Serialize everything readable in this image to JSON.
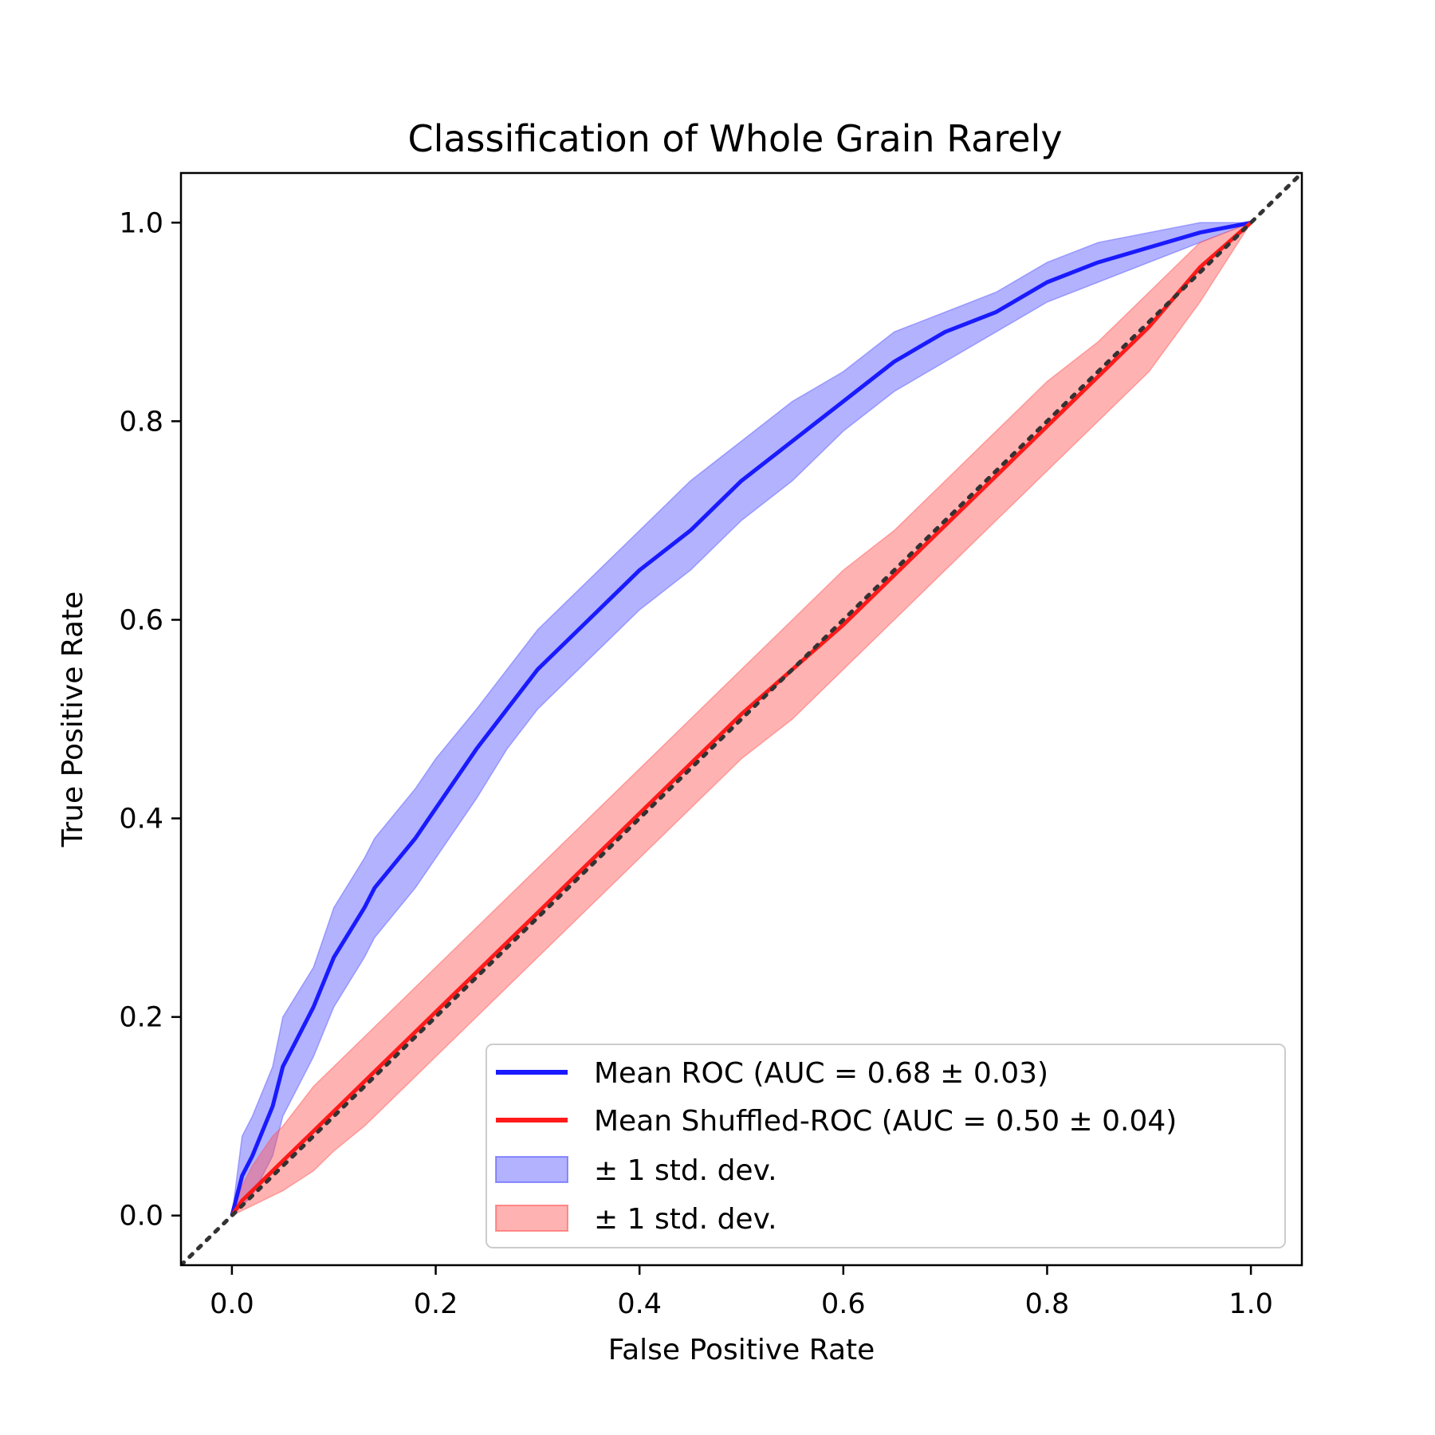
{
  "chart_data": {
    "type": "line",
    "title": "Classification of Whole Grain Rarely",
    "xlabel": "False Positive Rate",
    "ylabel": "True Positive Rate",
    "xlim": [
      -0.05,
      1.05
    ],
    "ylim": [
      -0.05,
      1.05
    ],
    "xticks": [
      "0.0",
      "0.2",
      "0.4",
      "0.6",
      "0.8",
      "1.0"
    ],
    "yticks": [
      "0.0",
      "0.2",
      "0.4",
      "0.6",
      "0.8",
      "1.0"
    ],
    "grid": false,
    "legend_position": "lower-right",
    "x": [
      0.0,
      0.01,
      0.02,
      0.04,
      0.05,
      0.08,
      0.1,
      0.13,
      0.14,
      0.18,
      0.2,
      0.24,
      0.27,
      0.3,
      0.35,
      0.4,
      0.45,
      0.5,
      0.55,
      0.6,
      0.65,
      0.7,
      0.75,
      0.8,
      0.85,
      0.9,
      0.95,
      1.0
    ],
    "series": [
      {
        "name": "Mean ROC (AUC = 0.68 ± 0.03)",
        "color": "#1a1aff",
        "y": [
          0.0,
          0.04,
          0.06,
          0.11,
          0.15,
          0.21,
          0.26,
          0.31,
          0.33,
          0.38,
          0.41,
          0.47,
          0.51,
          0.55,
          0.6,
          0.65,
          0.69,
          0.74,
          0.78,
          0.82,
          0.86,
          0.89,
          0.91,
          0.94,
          0.96,
          0.975,
          0.99,
          1.0
        ],
        "band": {
          "name": "± 1 std. dev.",
          "color": "#5555ff",
          "upper": [
            0.0,
            0.08,
            0.1,
            0.15,
            0.2,
            0.25,
            0.31,
            0.36,
            0.38,
            0.43,
            0.46,
            0.51,
            0.55,
            0.59,
            0.64,
            0.69,
            0.74,
            0.78,
            0.82,
            0.85,
            0.89,
            0.91,
            0.93,
            0.96,
            0.98,
            0.99,
            1.0,
            1.0
          ],
          "lower": [
            0.0,
            0.01,
            0.02,
            0.06,
            0.1,
            0.16,
            0.21,
            0.26,
            0.28,
            0.33,
            0.36,
            0.42,
            0.47,
            0.51,
            0.56,
            0.61,
            0.65,
            0.7,
            0.74,
            0.79,
            0.83,
            0.86,
            0.89,
            0.92,
            0.94,
            0.96,
            0.98,
            1.0
          ]
        }
      },
      {
        "name": "Mean Shuffled-ROC (AUC = 0.50 ± 0.04)",
        "color": "#ff1a1a",
        "y": [
          0.0,
          0.015,
          0.025,
          0.045,
          0.055,
          0.085,
          0.105,
          0.135,
          0.145,
          0.185,
          0.205,
          0.245,
          0.275,
          0.305,
          0.355,
          0.405,
          0.455,
          0.505,
          0.55,
          0.595,
          0.645,
          0.695,
          0.745,
          0.795,
          0.845,
          0.895,
          0.955,
          1.0
        ],
        "band": {
          "name": "± 1 std. dev.",
          "color": "#ff5555",
          "upper": [
            0.0,
            0.03,
            0.05,
            0.08,
            0.09,
            0.13,
            0.15,
            0.18,
            0.19,
            0.23,
            0.25,
            0.29,
            0.32,
            0.35,
            0.4,
            0.45,
            0.5,
            0.55,
            0.6,
            0.65,
            0.69,
            0.74,
            0.79,
            0.84,
            0.88,
            0.93,
            0.98,
            1.0
          ],
          "lower": [
            0.0,
            0.005,
            0.01,
            0.02,
            0.025,
            0.045,
            0.065,
            0.09,
            0.1,
            0.14,
            0.16,
            0.2,
            0.23,
            0.26,
            0.31,
            0.36,
            0.41,
            0.46,
            0.5,
            0.55,
            0.6,
            0.65,
            0.7,
            0.75,
            0.8,
            0.85,
            0.92,
            1.0
          ]
        }
      }
    ],
    "reference_line": {
      "x": [
        -0.05,
        1.05
      ],
      "y": [
        -0.05,
        1.05
      ],
      "color": "#333333",
      "style": "dotted"
    },
    "legend": [
      {
        "label": "Mean ROC (AUC = 0.68 ± 0.03)",
        "kind": "line",
        "color": "#1a1aff"
      },
      {
        "label": "Mean Shuffled-ROC (AUC = 0.50 ± 0.04)",
        "kind": "line",
        "color": "#ff1a1a"
      },
      {
        "label": "± 1 std. dev.",
        "kind": "patch",
        "color": "#5555ff"
      },
      {
        "label": "± 1 std. dev.",
        "kind": "patch",
        "color": "#ff5555"
      }
    ]
  }
}
